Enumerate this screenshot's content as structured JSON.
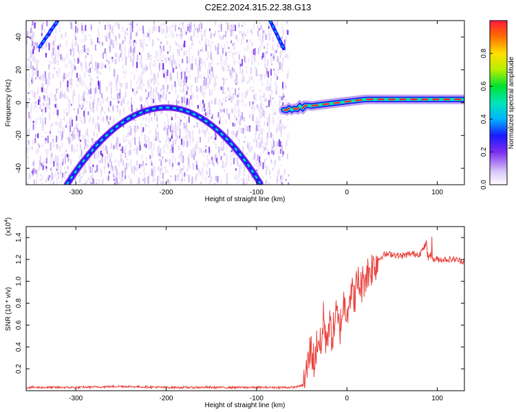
{
  "title": "C2E2.2024.315.22.38.G13",
  "chart_data": [
    {
      "type": "heatmap",
      "xlabel": "Height of straight line (km)",
      "ylabel": "Frequency (Hz)",
      "xlim": [
        -355,
        130
      ],
      "ylim": [
        -50,
        50
      ],
      "x_ticks": [
        -300,
        -200,
        -100,
        0,
        100
      ],
      "y_ticks": [
        -40,
        -20,
        0,
        20,
        40
      ],
      "colorbar": {
        "label": "Normalized spectral amplitude",
        "range": [
          0,
          1
        ],
        "ticks": [
          0.0,
          0.2,
          0.4,
          0.6,
          0.8
        ]
      },
      "features": {
        "noise_region_x": [
          -355,
          -65
        ],
        "arc": {
          "vertex_x": -200,
          "vertex_y": -3,
          "ends": [
            [
              -310,
              -50
            ],
            [
              -95,
              -50
            ]
          ]
        },
        "upper_traces": [
          {
            "x": [
              -340,
              -320
            ],
            "y": [
              34,
              50
            ]
          },
          {
            "x": [
              -85,
              -70
            ],
            "y": [
              50,
              33
            ]
          }
        ],
        "tone_line": {
          "x": [
            -70,
            130
          ],
          "y_start": -4,
          "y_end": 2
        }
      }
    },
    {
      "type": "line",
      "xlabel": "Height of straight line (km)",
      "ylabel": "SNR (10 * v/v)",
      "y_multiplier": "(x10",
      "y_multiplier_exp": "4",
      "y_multiplier_close": ")",
      "xlim": [
        -355,
        130
      ],
      "ylim": [
        0,
        1.5
      ],
      "x_ticks": [
        -300,
        -200,
        -100,
        0,
        100
      ],
      "y_ticks": [
        0.2,
        0.4,
        0.6,
        0.8,
        1.0,
        1.2,
        1.4
      ],
      "series": [
        {
          "color": "#e8403a",
          "x": [
            -355,
            -300,
            -250,
            -200,
            -150,
            -100,
            -60,
            -48,
            -44,
            -40,
            -36,
            -32,
            -28,
            -26,
            -24,
            -20,
            -16,
            -12,
            -8,
            -4,
            0,
            4,
            8,
            12,
            16,
            20,
            25,
            30,
            35,
            40,
            50,
            60,
            70,
            80,
            85,
            88,
            90,
            92,
            95,
            100,
            110,
            120,
            130
          ],
          "y": [
            0.03,
            0.03,
            0.04,
            0.03,
            0.03,
            0.03,
            0.03,
            0.05,
            0.2,
            0.4,
            0.25,
            0.5,
            0.35,
            0.75,
            0.45,
            0.6,
            0.5,
            0.7,
            0.55,
            0.8,
            0.75,
            0.9,
            0.85,
            1.0,
            0.95,
            1.05,
            1.1,
            1.15,
            1.2,
            1.24,
            1.25,
            1.23,
            1.25,
            1.25,
            1.3,
            1.35,
            1.2,
            1.25,
            1.2,
            1.2,
            1.2,
            1.2,
            1.18
          ]
        }
      ]
    }
  ]
}
